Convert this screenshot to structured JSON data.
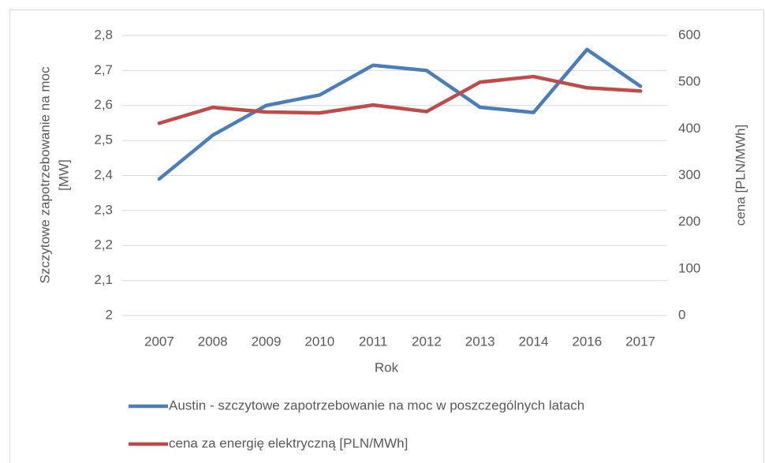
{
  "chart_data": {
    "type": "line",
    "categories": [
      "2007",
      "2008",
      "2009",
      "2010",
      "2011",
      "2012",
      "2013",
      "2014",
      "2016",
      "2017"
    ],
    "series": [
      {
        "name": "Austin - szczytowe zapotrzebowanie na moc w poszczególnych latach",
        "color": "#4a7ebb",
        "values": [
          2.39,
          2.515,
          2.6,
          2.63,
          2.715,
          2.7,
          2.595,
          2.58,
          2.76,
          2.655
        ]
      },
      {
        "name": "cena za energię elektryczną [PLN/MWh]",
        "color": "#be4b48",
        "axis": "y2",
        "values": [
          412,
          446,
          436,
          434,
          451,
          437,
          500,
          512,
          488,
          481
        ]
      }
    ],
    "xlabel": "Rok",
    "ylabel": [
      "Szczytowe zapotrzebowanie na moc",
      "[MW]"
    ],
    "y2label": "cena [PLN/MWh]",
    "ylim": [
      2,
      2.8
    ],
    "yticks": [
      2,
      {
        "value": 2.1,
        "label": "2,1"
      },
      {
        "value": 2.2,
        "label": "2,2"
      },
      {
        "value": 2.3,
        "label": "2,3"
      },
      {
        "value": 2.4,
        "label": "2,4"
      },
      {
        "value": 2.5,
        "label": "2,5"
      },
      {
        "value": 2.6,
        "label": "2,6"
      },
      {
        "value": 2.7,
        "label": "2,7"
      },
      {
        "value": 2.8,
        "label": "2,8"
      }
    ],
    "y2lim": [
      0,
      600
    ],
    "y2ticks": [
      0,
      100,
      200,
      300,
      400,
      500,
      600
    ],
    "grid": true,
    "legend": "bottom"
  }
}
